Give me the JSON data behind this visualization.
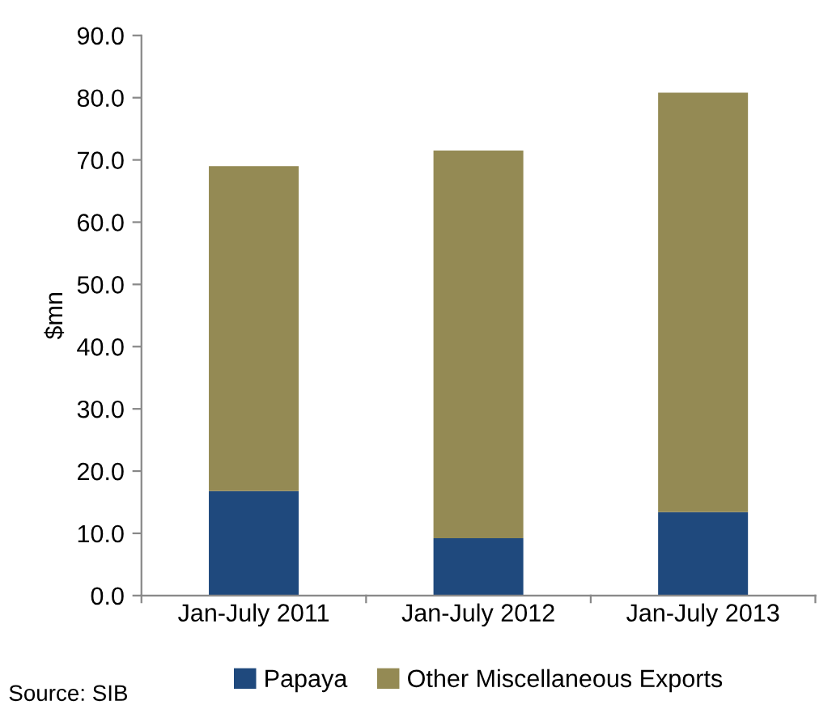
{
  "chart_data": {
    "type": "bar",
    "stacked": true,
    "ylabel": "$mn",
    "categories": [
      "Jan-July 2011",
      "Jan-July 2012",
      "Jan-July 2013"
    ],
    "series": [
      {
        "name": "Papaya",
        "color": "#1f497d",
        "values": [
          16.8,
          9.2,
          13.4
        ]
      },
      {
        "name": "Other Miscellaneous Exports",
        "color": "#948a54",
        "values": [
          52.2,
          62.3,
          67.4
        ]
      }
    ],
    "ylim": [
      0,
      90
    ],
    "yticks": [
      {
        "value": 0,
        "label": "0.0"
      },
      {
        "value": 10,
        "label": "10.0"
      },
      {
        "value": 20,
        "label": "20.0"
      },
      {
        "value": 30,
        "label": "30.0"
      },
      {
        "value": 40,
        "label": "40.0"
      },
      {
        "value": 50,
        "label": "50.0"
      },
      {
        "value": 60,
        "label": "60.0"
      },
      {
        "value": 70,
        "label": "70.0"
      },
      {
        "value": 80,
        "label": "80.0"
      },
      {
        "value": 90,
        "label": "90.0"
      }
    ],
    "grid": false,
    "legend": "bottom",
    "annotations": [
      "Source: SIB"
    ]
  }
}
